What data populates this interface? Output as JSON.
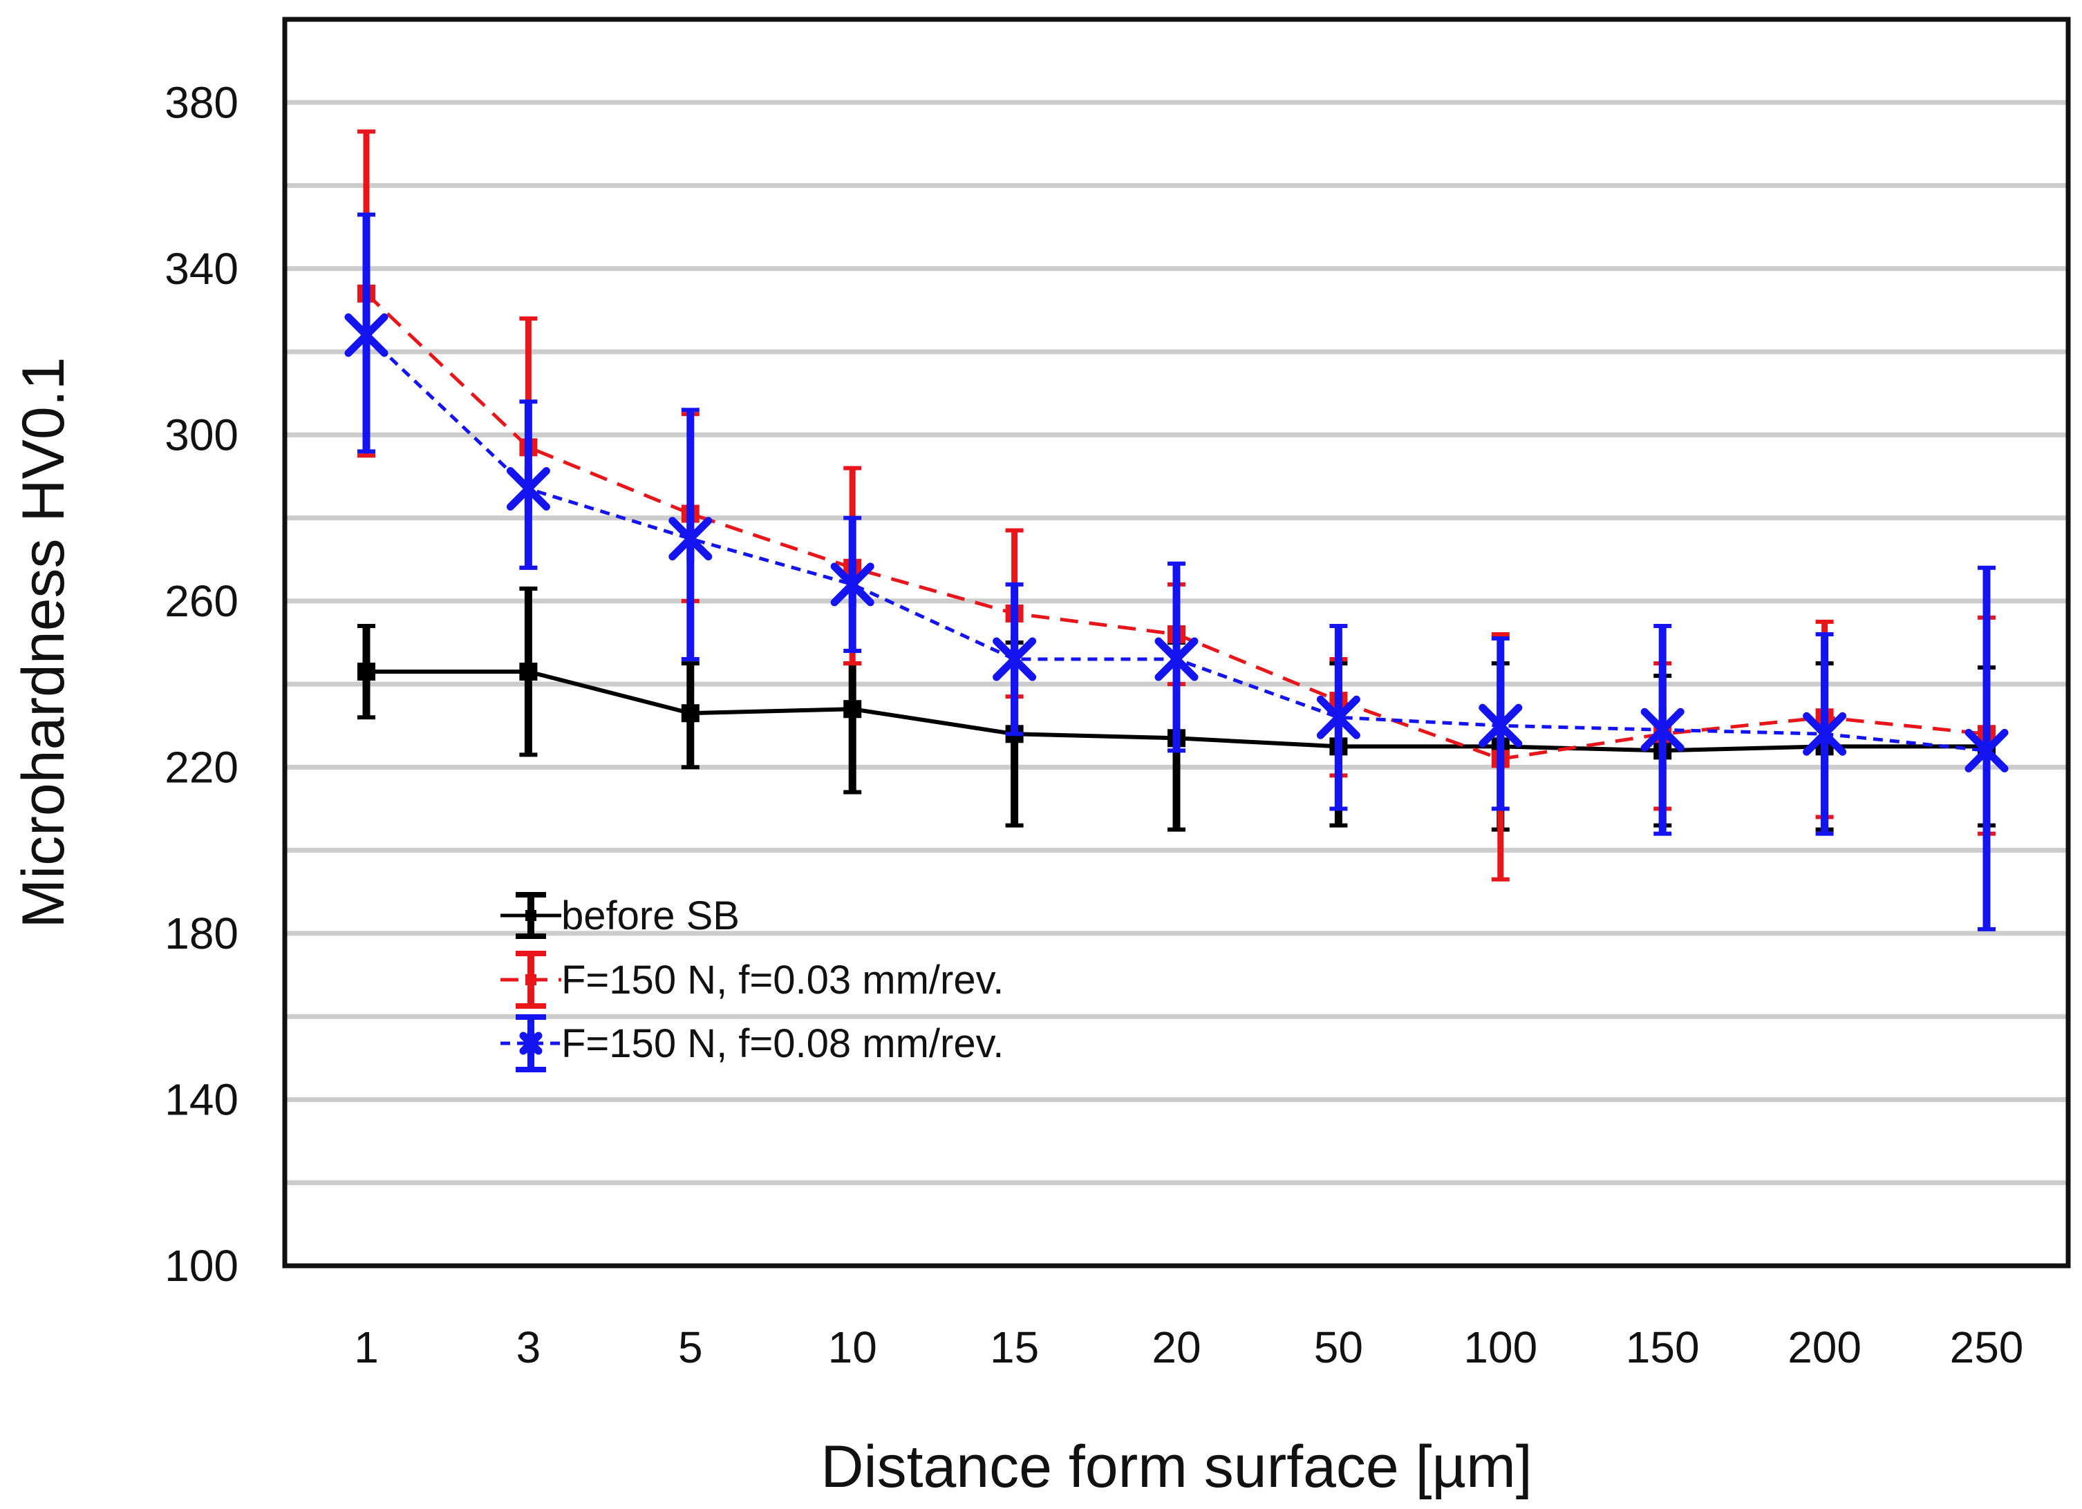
{
  "chart_data": {
    "type": "line",
    "title": "",
    "xlabel": "Distance form surface [µm]",
    "ylabel": "Microhardness HV0.1",
    "categories": [
      "1",
      "3",
      "5",
      "10",
      "15",
      "20",
      "50",
      "100",
      "150",
      "200",
      "250"
    ],
    "ylim": [
      100,
      400
    ],
    "yticks": [
      "100",
      "140",
      "180",
      "220",
      "260",
      "300",
      "340",
      "380"
    ],
    "grid": true,
    "legend_position": "lower-left",
    "series": [
      {
        "name": "before SB",
        "color": "#000000",
        "line": "solid",
        "marker": "square",
        "values": [
          243,
          243,
          233,
          234,
          228,
          227,
          225,
          225,
          224,
          225,
          225
        ],
        "err_low": [
          232,
          223,
          220,
          214,
          206,
          205,
          206,
          205,
          206,
          205,
          206
        ],
        "err_high": [
          254,
          263,
          245,
          245,
          250,
          250,
          245,
          245,
          242,
          245,
          244
        ]
      },
      {
        "name": "F=150 N, f=0.03 mm/rev.",
        "color": "#e8161b",
        "line": "dashed",
        "marker": "square",
        "values": [
          334,
          297,
          281,
          268,
          257,
          252,
          236,
          222,
          228,
          232,
          228
        ],
        "err_low": [
          295,
          268,
          260,
          245,
          237,
          240,
          218,
          193,
          210,
          208,
          204
        ],
        "err_high": [
          373,
          328,
          305,
          292,
          277,
          264,
          246,
          252,
          245,
          255,
          256
        ]
      },
      {
        "name": "F=150 N, f=0.08 mm/rev.",
        "color": "#1414f0",
        "line": "dotted",
        "marker": "asterisk",
        "values": [
          324,
          287,
          275,
          264,
          246,
          246,
          232,
          230,
          229,
          228,
          224
        ],
        "err_low": [
          296,
          268,
          246,
          248,
          228,
          224,
          210,
          210,
          204,
          204,
          181
        ],
        "err_high": [
          353,
          308,
          306,
          280,
          264,
          269,
          254,
          251,
          254,
          252,
          268
        ]
      }
    ]
  }
}
